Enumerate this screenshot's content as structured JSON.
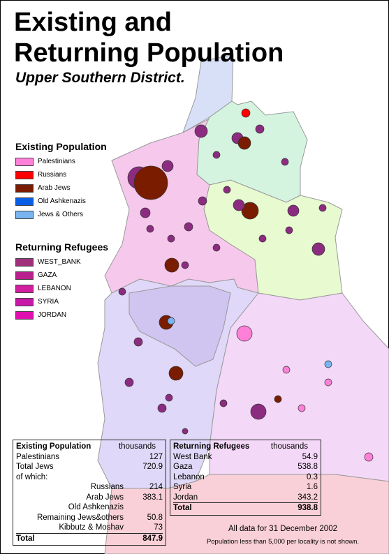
{
  "header": {
    "title_lines": [
      "Existing and",
      "Returning Population"
    ],
    "subtitle": "Upper Southern District."
  },
  "legend_existing": {
    "title": "Existing Population",
    "items": [
      {
        "label": "Palestinians",
        "color": "#ff80d8"
      },
      {
        "label": "Russians",
        "color": "#ff0000"
      },
      {
        "label": "Arab Jews",
        "color": "#7a1c00"
      },
      {
        "label": "Old Ashkenazis",
        "color": "#0a5ee6"
      },
      {
        "label": "Jews & Others",
        "color": "#78b4f0"
      }
    ]
  },
  "legend_refugees": {
    "title": "Returning Refugees",
    "items": [
      {
        "label": "WEST_BANK",
        "color": "#a0307c"
      },
      {
        "label": "GAZA",
        "color": "#b8208c"
      },
      {
        "label": "LEBANON",
        "color": "#d020a0"
      },
      {
        "label": "SYRIA",
        "color": "#c818a8"
      },
      {
        "label": "JORDAN",
        "color": "#e010b0"
      }
    ]
  },
  "table_existing": {
    "title": "Existing Population",
    "unit": "thousands",
    "rows": [
      {
        "label": "Palestinians",
        "value": "127"
      },
      {
        "label": "Total Jews",
        "value": "720.9"
      },
      {
        "label": "of which:"
      },
      {
        "label": "Russians",
        "value": "214"
      },
      {
        "label": "Arab Jews",
        "value": "383.1"
      },
      {
        "label": "Old Ashkenazis"
      },
      {
        "label": "Remaining Jews&others",
        "value": "50.8"
      },
      {
        "label": "Kibbutz & Moshav",
        "value": "73"
      }
    ],
    "total": {
      "label": "Total",
      "value": "847.9"
    }
  },
  "table_refugees": {
    "title": "Returning Refugees",
    "unit": "thousands",
    "rows": [
      {
        "label": "West Bank",
        "value": "54.9"
      },
      {
        "label": "Gaza",
        "value": "538.8"
      },
      {
        "label": "Lebanon",
        "value": "0.3"
      },
      {
        "label": "Syria",
        "value": "1.6"
      },
      {
        "label": "Jordan",
        "value": "343.2"
      }
    ],
    "total": {
      "label": "Total",
      "value": "938.8"
    }
  },
  "notes": [
    "All data for 31 December 2002",
    "Population less than 5,000 per locality is not shown."
  ]
}
